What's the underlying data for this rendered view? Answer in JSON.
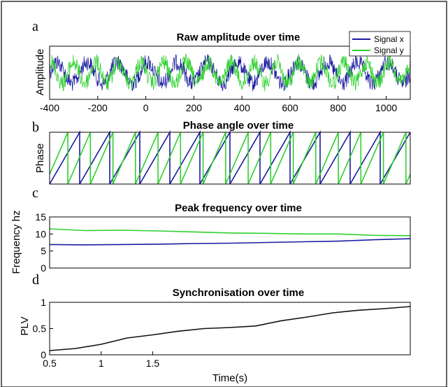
{
  "chart_data": [
    {
      "panel": "a",
      "type": "line",
      "title": "Raw amplitude over time",
      "xlabel": "",
      "ylabel": "Amplitude",
      "xlim": [
        -400,
        1100
      ],
      "x_ticks": [
        "-400",
        "-200",
        "0",
        "200",
        "400",
        "600",
        "800",
        "1000"
      ],
      "legend_position": "top-right",
      "series": [
        {
          "name": "Signal x",
          "color": "#1b1ba0",
          "signal": "noisy-sine",
          "cycles": 12,
          "phase_offset_rad": 0.0
        },
        {
          "name": "Signal y",
          "color": "#2fd02f",
          "signal": "noisy-sine",
          "cycles": 16,
          "phase_offset_rad": 1.2
        }
      ]
    },
    {
      "panel": "b",
      "type": "line",
      "title": "Phase angle over time",
      "xlabel": "",
      "ylabel": "Phase",
      "series": [
        {
          "name": "",
          "color": "#1b1ba0",
          "signal": "sawtooth",
          "cycles": 12,
          "phase_offset_rad": 0.0
        },
        {
          "name": "",
          "color": "#2fd02f",
          "signal": "sawtooth",
          "cycles": 16,
          "phase_offset_rad": 1.2
        }
      ]
    },
    {
      "panel": "c",
      "type": "line",
      "title": "Peak frequency over time",
      "xlabel": "",
      "ylabel": "Frequency hz",
      "ylim": [
        0,
        15
      ],
      "y_ticks": [
        "0",
        "5",
        "10",
        "15"
      ],
      "series": [
        {
          "name": "",
          "color": "#2fd02f",
          "x": [
            0,
            0.1,
            0.2,
            0.3,
            0.4,
            0.5,
            0.6,
            0.7,
            0.8,
            0.9,
            1.0
          ],
          "y": [
            11.5,
            11.0,
            11.1,
            10.9,
            10.6,
            10.3,
            10.2,
            10.0,
            10.0,
            9.6,
            9.5
          ]
        },
        {
          "name": "",
          "color": "#1b1ba0",
          "x": [
            0,
            0.1,
            0.2,
            0.3,
            0.4,
            0.5,
            0.6,
            0.7,
            0.8,
            0.9,
            1.0
          ],
          "y": [
            6.9,
            6.8,
            6.9,
            7.0,
            7.2,
            7.3,
            7.5,
            7.7,
            7.9,
            8.3,
            8.6
          ]
        }
      ]
    },
    {
      "panel": "d",
      "type": "line",
      "title": "Synchronisation over time",
      "xlabel": "Time(s)",
      "ylabel": "PLV",
      "xlim": [
        0.5,
        4.0
      ],
      "ylim": [
        0,
        1
      ],
      "x_ticks": [
        "0.5",
        "1",
        "1.5"
      ],
      "y_ticks": [
        "0",
        "0.5",
        "1"
      ],
      "series": [
        {
          "name": "",
          "color": "#111111",
          "x": [
            0.5,
            0.75,
            1.0,
            1.25,
            1.5,
            1.75,
            2.0,
            2.25,
            2.5,
            2.75,
            3.0,
            3.25,
            3.5,
            3.75,
            4.0
          ],
          "y": [
            0.08,
            0.12,
            0.2,
            0.32,
            0.38,
            0.45,
            0.5,
            0.52,
            0.55,
            0.65,
            0.72,
            0.8,
            0.85,
            0.88,
            0.92
          ]
        }
      ]
    }
  ]
}
